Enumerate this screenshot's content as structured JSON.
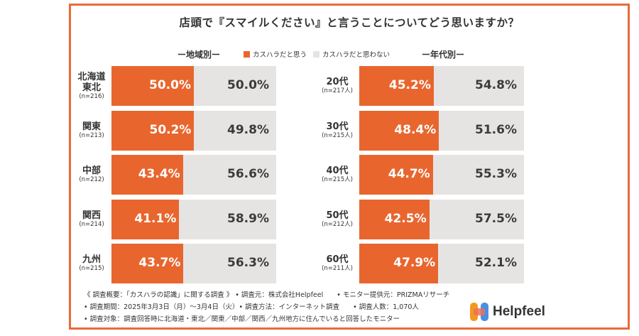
{
  "title": "店頭で『スマイルください』と言うことについてどう思いますか？",
  "legend": {
    "yes": "カスハラだと思う",
    "no": "カスハラだと思わない",
    "yes_color": "#e8662e",
    "no_color": "#e6e4e3"
  },
  "chart_data": [
    {
      "type": "bar",
      "title": "ー地域別ー",
      "categories": [
        {
          "name": "北海道\n東北",
          "n": "(n=216)"
        },
        {
          "name": "関東",
          "n": "(n=213)"
        },
        {
          "name": "中部",
          "n": "(n=212)"
        },
        {
          "name": "関西",
          "n": "(n=214)"
        },
        {
          "name": "九州",
          "n": "(n=215)"
        }
      ],
      "series": [
        {
          "name": "カスハラだと思う",
          "values": [
            50.0,
            50.2,
            43.4,
            41.1,
            43.7
          ],
          "labels": [
            "50.0%",
            "50.2%",
            "43.4%",
            "41.1%",
            "43.7%"
          ]
        },
        {
          "name": "カスハラだと思わない",
          "values": [
            50.0,
            49.8,
            56.6,
            58.9,
            56.3
          ],
          "labels": [
            "50.0%",
            "49.8%",
            "56.6%",
            "58.9%",
            "56.3%"
          ]
        }
      ],
      "stacked": true,
      "orientation": "horizontal"
    },
    {
      "type": "bar",
      "title": "ー年代別ー",
      "categories": [
        {
          "name": "20代",
          "n": "(n=217人)"
        },
        {
          "name": "30代",
          "n": "(n=215人)"
        },
        {
          "name": "40代",
          "n": "(n=215人)"
        },
        {
          "name": "50代",
          "n": "(n=212人)"
        },
        {
          "name": "60代",
          "n": "(n=211人)"
        }
      ],
      "series": [
        {
          "name": "カスハラだと思う",
          "values": [
            45.2,
            48.4,
            44.7,
            42.5,
            47.9
          ],
          "labels": [
            "45.2%",
            "48.4%",
            "44.7%",
            "42.5%",
            "47.9%"
          ]
        },
        {
          "name": "カスハラだと思わない",
          "values": [
            54.8,
            51.6,
            55.3,
            57.5,
            52.1
          ],
          "labels": [
            "54.8%",
            "51.6%",
            "55.3%",
            "57.5%",
            "52.1%"
          ]
        }
      ],
      "stacked": true,
      "orientation": "horizontal"
    }
  ],
  "footnotes": [
    "《 調査概要：「カスハラの認識」に関する調査 》 • 調査元：株式会社Helpfeel　　• モニター提供元：PRIZMAリサーチ",
    "• 調査期間：2025年3月3日（月）～3月4日（火）• 調査方法：インターネット調査　　• 調査人数：1,070人",
    "• 調査対象：調査回答時に北海道・東北／関東／中部／関西／九州地方に住んでいると回答したモニター"
  ],
  "logo": {
    "text": "Helpfeel",
    "icon": "helpfeel-logo-icon"
  }
}
